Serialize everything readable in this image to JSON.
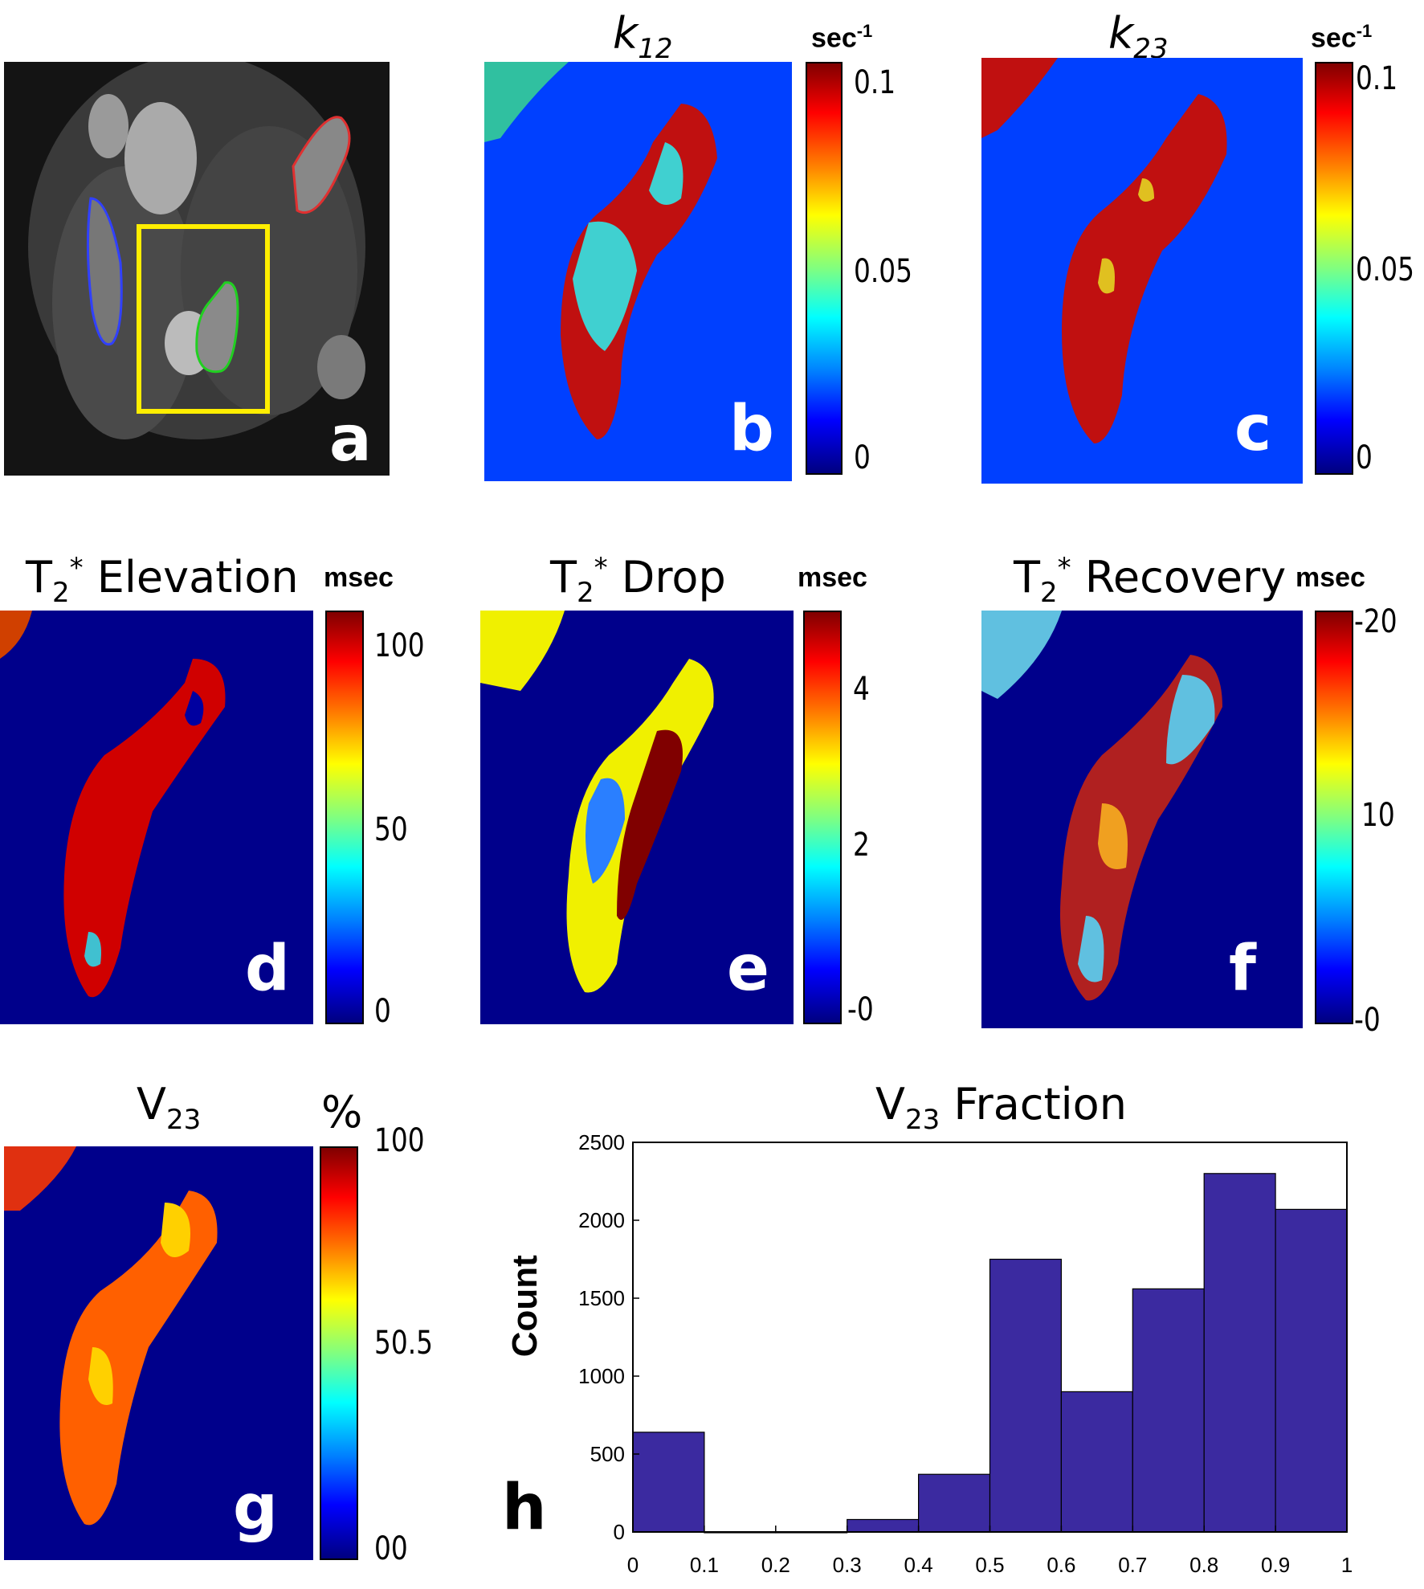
{
  "panels": {
    "a": {
      "letter": "a"
    },
    "b": {
      "title_main": "k",
      "title_sub": "12",
      "unit_main": "sec",
      "unit_sup": "-1",
      "ticks": [
        "0.1",
        "0.05",
        "0"
      ],
      "letter": "b"
    },
    "c": {
      "title_main": "k",
      "title_sub": "23",
      "unit_main": "sec",
      "unit_sup": "-1",
      "ticks": [
        "0.1",
        "0.05",
        "0"
      ],
      "letter": "c"
    },
    "d": {
      "title_main": "T",
      "title_sub": "2",
      "title_sup": "*",
      "title_rest": " Elevation",
      "unit": "msec",
      "ticks": [
        "100",
        "50",
        "0"
      ],
      "letter": "d"
    },
    "e": {
      "title_main": "T",
      "title_sub": "2",
      "title_sup": "*",
      "title_rest": " Drop",
      "unit": "msec",
      "ticks": [
        "4",
        "2",
        "-0"
      ],
      "letter": "e"
    },
    "f": {
      "title_main": "T",
      "title_sub": "2",
      "title_sup": "*",
      "title_rest": " Recovery",
      "unit": "msec",
      "ticks": [
        "-20",
        "10",
        "-0"
      ],
      "letter": "f"
    },
    "g": {
      "title_main": "V",
      "title_sub": "23",
      "unit": "%",
      "ticks": [
        "100",
        "50.5",
        "00"
      ],
      "letter": "g"
    },
    "h": {
      "letter": "h"
    }
  },
  "colors": {
    "map_blue": "#0040ff",
    "map_navy": "#00008b",
    "bar_fill": "#3b2aa0",
    "roi_box": "#ffee00"
  },
  "chart_data": {
    "type": "bar",
    "title_main": "V",
    "title_sub": "23",
    "title_rest": " Fraction",
    "xlabel": "",
    "ylabel": "Count",
    "bin_edges": [
      0,
      0.1,
      0.2,
      0.3,
      0.4,
      0.5,
      0.6,
      0.7,
      0.8,
      0.9,
      1.0
    ],
    "values": [
      640,
      0,
      0,
      80,
      370,
      1750,
      900,
      1560,
      2300,
      2070
    ],
    "xticks": [
      "0",
      "0.1",
      "0.2",
      "0.3",
      "0.4",
      "0.5",
      "0.6",
      "0.7",
      "0.8",
      "0.9",
      "1"
    ],
    "yticks": [
      "0",
      "500",
      "1000",
      "1500",
      "2000",
      "2500"
    ],
    "xlim": [
      0,
      1
    ],
    "ylim": [
      0,
      2500
    ]
  }
}
